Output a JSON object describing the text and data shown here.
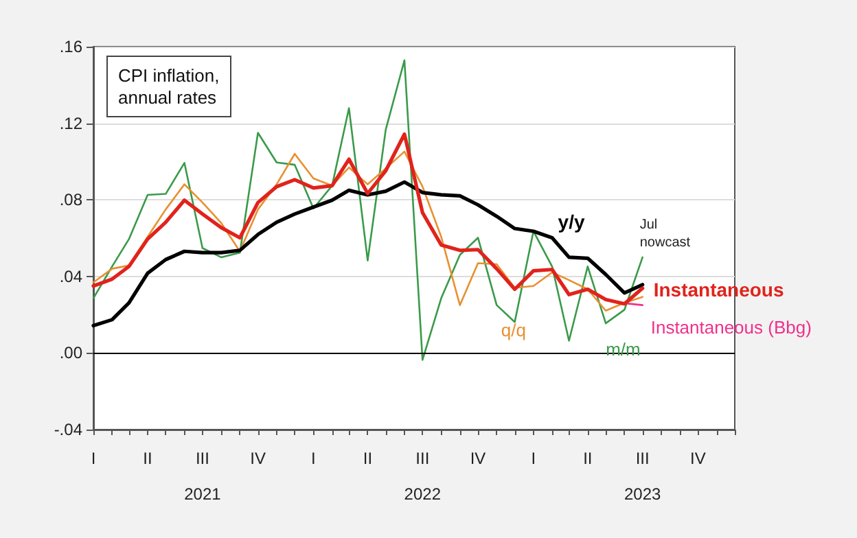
{
  "chart_data": {
    "type": "line",
    "title": "CPI inflation,\nannual rates",
    "x": [
      "2021-01",
      "2021-02",
      "2021-03",
      "2021-04",
      "2021-05",
      "2021-06",
      "2021-07",
      "2021-08",
      "2021-09",
      "2021-10",
      "2021-11",
      "2021-12",
      "2022-01",
      "2022-02",
      "2022-03",
      "2022-04",
      "2022-05",
      "2022-06",
      "2022-07",
      "2022-08",
      "2022-09",
      "2022-10",
      "2022-11",
      "2022-12",
      "2023-01",
      "2023-02",
      "2023-03",
      "2023-04",
      "2023-05",
      "2023-06",
      "2023-07"
    ],
    "series": [
      {
        "name": "m/m",
        "color": "#3a9a4a",
        "values": [
          0.0286,
          0.0452,
          0.0595,
          0.0826,
          0.0831,
          0.0993,
          0.0548,
          0.05,
          0.0524,
          0.115,
          0.0995,
          0.0983,
          0.0755,
          0.0874,
          0.1279,
          0.0483,
          0.1167,
          0.1529,
          -0.0036,
          0.0286,
          0.0512,
          0.0602,
          0.025,
          0.0162,
          0.0636,
          0.0452,
          0.0064,
          0.0452,
          0.0155,
          0.0226,
          0.05
        ]
      },
      {
        "name": "q/q",
        "color": "#e8902f",
        "values": [
          0.0369,
          0.044,
          0.0457,
          0.0607,
          0.075,
          0.0881,
          0.0786,
          0.0679,
          0.0531,
          0.075,
          0.0881,
          0.104,
          0.0912,
          0.0874,
          0.0969,
          0.0881,
          0.0964,
          0.1052,
          0.0869,
          0.0607,
          0.025,
          0.0469,
          0.0464,
          0.034,
          0.035,
          0.0421,
          0.0381,
          0.0333,
          0.0221,
          0.0262,
          0.0293
        ]
      },
      {
        "name": "y/y",
        "color": "#000000",
        "values": [
          0.0143,
          0.0174,
          0.0262,
          0.0417,
          0.0488,
          0.0531,
          0.0524,
          0.0524,
          0.0536,
          0.0619,
          0.0683,
          0.0726,
          0.0762,
          0.0798,
          0.085,
          0.0826,
          0.0845,
          0.0893,
          0.0838,
          0.0826,
          0.0821,
          0.0774,
          0.0714,
          0.065,
          0.0636,
          0.0602,
          0.05,
          0.0495,
          0.041,
          0.0314,
          0.0357
        ]
      },
      {
        "name": "Instantaneous (Bbg)",
        "color": "#f0308c",
        "values": [
          null,
          null,
          null,
          null,
          null,
          null,
          null,
          null,
          null,
          null,
          null,
          null,
          null,
          null,
          null,
          null,
          null,
          null,
          null,
          null,
          null,
          null,
          null,
          null,
          null,
          null,
          null,
          null,
          null,
          0.026,
          0.025
        ]
      },
      {
        "name": "Instantaneous",
        "color": "#e0231c",
        "values": [
          0.035,
          0.0386,
          0.0452,
          0.0595,
          0.0683,
          0.0798,
          0.0726,
          0.0655,
          0.0602,
          0.0786,
          0.0869,
          0.0905,
          0.0862,
          0.0874,
          0.1012,
          0.0833,
          0.0952,
          0.1143,
          0.0733,
          0.0564,
          0.0536,
          0.054,
          0.044,
          0.0333,
          0.0429,
          0.0436,
          0.0305,
          0.0333,
          0.0279,
          0.0257,
          0.0338
        ]
      }
    ],
    "xlim": [
      "2021-01",
      "2023-12"
    ],
    "xticks": [
      {
        "value": "2021-01",
        "label": "I"
      },
      {
        "value": "2021-02",
        "label": null
      },
      {
        "value": "2021-03",
        "label": null
      },
      {
        "value": "2021-04",
        "label": "II"
      },
      {
        "value": "2021-05",
        "label": null
      },
      {
        "value": "2021-06",
        "label": null
      },
      {
        "value": "2021-07",
        "label": "III\n2021"
      },
      {
        "value": "2021-08",
        "label": null
      },
      {
        "value": "2021-09",
        "label": null
      },
      {
        "value": "2021-10",
        "label": "IV"
      },
      {
        "value": "2021-11",
        "label": null
      },
      {
        "value": "2021-12",
        "label": null
      },
      {
        "value": "2022-01",
        "label": "I"
      },
      {
        "value": "2022-02",
        "label": null
      },
      {
        "value": "2022-03",
        "label": null
      },
      {
        "value": "2022-04",
        "label": "II"
      },
      {
        "value": "2022-05",
        "label": null
      },
      {
        "value": "2022-06",
        "label": null
      },
      {
        "value": "2022-07",
        "label": "III\n2022"
      },
      {
        "value": "2022-08",
        "label": null
      },
      {
        "value": "2022-09",
        "label": null
      },
      {
        "value": "2022-10",
        "label": "IV"
      },
      {
        "value": "2022-11",
        "label": null
      },
      {
        "value": "2022-12",
        "label": null
      },
      {
        "value": "2023-01",
        "label": "I"
      },
      {
        "value": "2023-02",
        "label": null
      },
      {
        "value": "2023-03",
        "label": null
      },
      {
        "value": "2023-04",
        "label": "II"
      },
      {
        "value": "2023-05",
        "label": null
      },
      {
        "value": "2023-06",
        "label": null
      },
      {
        "value": "2023-07",
        "label": "III\n2023"
      },
      {
        "value": "2023-08",
        "label": null
      },
      {
        "value": "2023-09",
        "label": null
      },
      {
        "value": "2023-10",
        "label": "IV"
      },
      {
        "value": "2023-11",
        "label": null
      },
      {
        "value": "2023-12",
        "label": null
      }
    ],
    "ylim": [
      -0.04,
      0.16
    ],
    "yticks": [
      {
        "value": -0.04,
        "label": "-.04"
      },
      {
        "value": 0,
        "label": ".00"
      },
      {
        "value": 0.04,
        "label": ".04"
      },
      {
        "value": 0.08,
        "label": ".08"
      },
      {
        "value": 0.12,
        "label": ".12"
      },
      {
        "value": 0.16,
        "label": ".16"
      }
    ],
    "grid": "y",
    "legend": false,
    "marker": "none",
    "line_style": "solid",
    "ref_lines": [
      {
        "axis": "y",
        "value": 0,
        "label": null,
        "color": "#000000"
      }
    ],
    "annotations": [
      {
        "text": "Jul\nnowcast",
        "x": "2023-07",
        "y": 0.05
      }
    ]
  }
}
